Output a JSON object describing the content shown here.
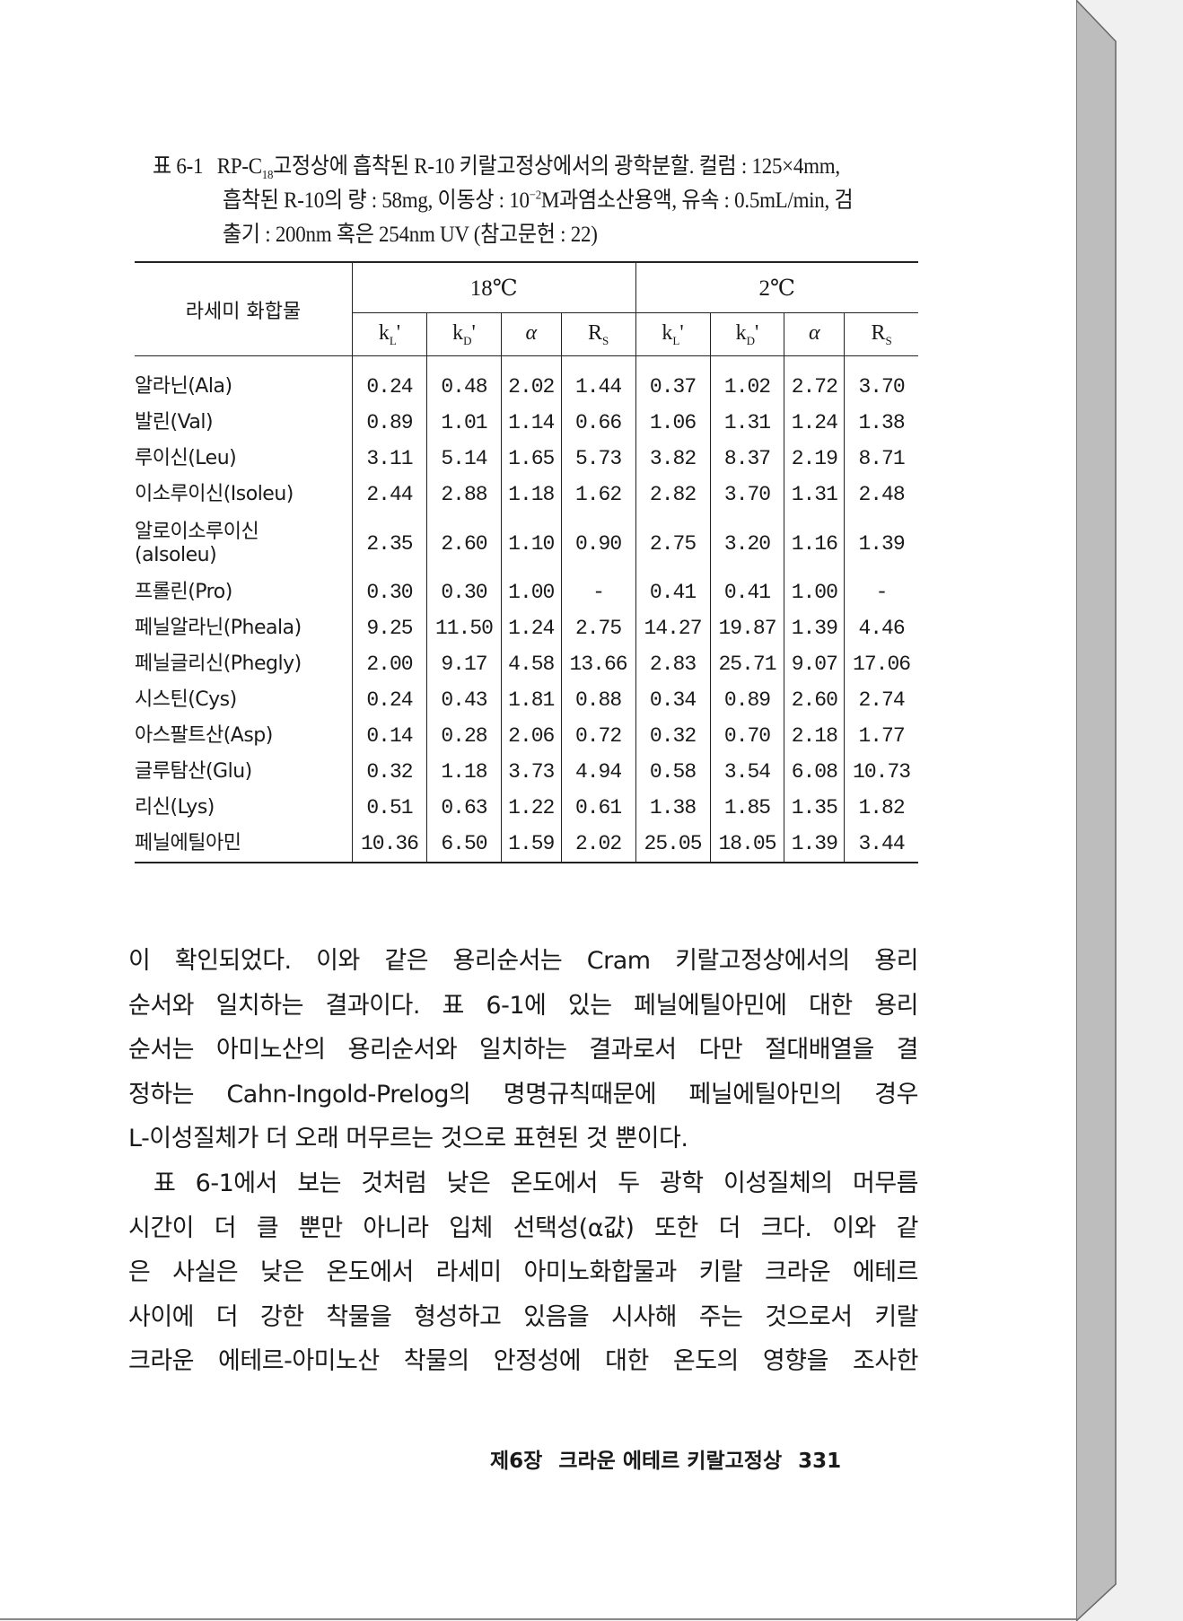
{
  "caption": {
    "label": "표 6-1",
    "line1": [
      "RP-C",
      "18",
      "고정상에 흡착된 R-10 키랄고정상에서의 광학분할. 컬럼 : 125×4mm,"
    ],
    "line2": [
      "흡착된 R-10의 량 : 58mg, 이동상 : 10",
      "−2",
      "M과염소산용액, 유속 : 0.5mL/min, 검"
    ],
    "line3": "출기 : 200nm 혹은 254nm UV (참고문헌 : 22)"
  },
  "table": {
    "name_header": "라세미 화합물",
    "groups": [
      "18℃",
      "2℃"
    ],
    "subheaders": [
      {
        "base": "k",
        "sub": "L",
        "suffix": "'"
      },
      {
        "base": "k",
        "sub": "D",
        "suffix": "'"
      },
      {
        "base": "α",
        "sub": "",
        "suffix": ""
      },
      {
        "base": "R",
        "sub": "S",
        "suffix": ""
      }
    ],
    "rows": [
      {
        "name": "알라닌(Ala)",
        "values": [
          "0.24",
          "0.48",
          "2.02",
          "1.44",
          "0.37",
          "1.02",
          "2.72",
          "3.70"
        ]
      },
      {
        "name": "발린(Val)",
        "values": [
          "0.89",
          "1.01",
          "1.14",
          "0.66",
          "1.06",
          "1.31",
          "1.24",
          "1.38"
        ]
      },
      {
        "name": "루이신(Leu)",
        "values": [
          "3.11",
          "5.14",
          "1.65",
          "5.73",
          "3.82",
          "8.37",
          "2.19",
          "8.71"
        ]
      },
      {
        "name": "이소루이신(Isoleu)",
        "values": [
          "2.44",
          "2.88",
          "1.18",
          "1.62",
          "2.82",
          "3.70",
          "1.31",
          "2.48"
        ]
      },
      {
        "name": "알로이소루이신 (aIsoleu)",
        "values": [
          "2.35",
          "2.60",
          "1.10",
          "0.90",
          "2.75",
          "3.20",
          "1.16",
          "1.39"
        ]
      },
      {
        "name": "프롤린(Pro)",
        "values": [
          "0.30",
          "0.30",
          "1.00",
          "-",
          "0.41",
          "0.41",
          "1.00",
          "-"
        ]
      },
      {
        "name": "페닐알라닌(Pheala)",
        "values": [
          "9.25",
          "11.50",
          "1.24",
          "2.75",
          "14.27",
          "19.87",
          "1.39",
          "4.46"
        ]
      },
      {
        "name": "페닐글리신(Phegly)",
        "values": [
          "2.00",
          "9.17",
          "4.58",
          "13.66",
          "2.83",
          "25.71",
          "9.07",
          "17.06"
        ]
      },
      {
        "name": "시스틴(Cys)",
        "values": [
          "0.24",
          "0.43",
          "1.81",
          "0.88",
          "0.34",
          "0.89",
          "2.60",
          "2.74"
        ]
      },
      {
        "name": "아스팔트산(Asp)",
        "values": [
          "0.14",
          "0.28",
          "2.06",
          "0.72",
          "0.32",
          "0.70",
          "2.18",
          "1.77"
        ]
      },
      {
        "name": "글루탐산(Glu)",
        "values": [
          "0.32",
          "1.18",
          "3.73",
          "4.94",
          "0.58",
          "3.54",
          "6.08",
          "10.73"
        ]
      },
      {
        "name": "리신(Lys)",
        "values": [
          "0.51",
          "0.63",
          "1.22",
          "0.61",
          "1.38",
          "1.85",
          "1.35",
          "1.82"
        ]
      },
      {
        "name": "페닐에틸아민",
        "values": [
          "10.36",
          "6.50",
          "1.59",
          "2.02",
          "25.05",
          "18.05",
          "1.39",
          "3.44"
        ]
      }
    ]
  },
  "body": {
    "paragraph1": [
      "이 확인되었다. 이와 같은 용리순서는 Cram 키랄고정상에서의 용리",
      "순서와 일치하는 결과이다. 표 6-1에 있는 페닐에틸아민에 대한 용리",
      "순서는 아미노산의 용리순서와 일치하는 결과로서 다만 절대배열을 결",
      "정하는 Cahn-Ingold-Prelog의 명명규칙때문에 페닐에틸아민의 경우",
      "L-이성질체가 더 오래 머무르는 것으로 표현된 것 뿐이다."
    ],
    "paragraph2": [
      "표 6-1에서 보는 것처럼 낮은 온도에서 두 광학 이성질체의 머무름",
      "시간이 더 클 뿐만 아니라 입체 선택성(α값) 또한 더 크다. 이와 같",
      "은 사실은 낮은 온도에서 라세미 아미노화합물과 키랄 크라운 에테르",
      "사이에 더 강한 착물을 형성하고 있음을 시사해 주는 것으로서 키랄",
      "크라운 에테르-아미노산 착물의 안정성에 대한 온도의 영향을 조사한"
    ]
  },
  "footer": {
    "chapter": "제6장",
    "title": "크라운 에테르 키랄고정상",
    "page_number": "331"
  }
}
